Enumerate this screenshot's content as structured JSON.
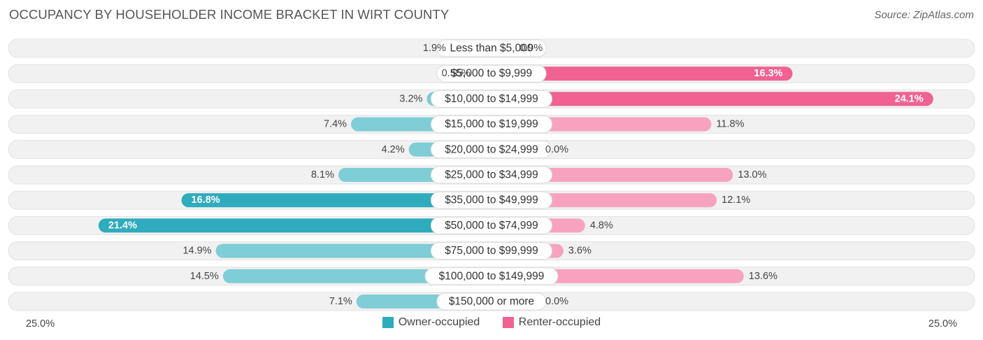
{
  "header": {
    "title": "OCCUPANCY BY HOUSEHOLDER INCOME BRACKET IN WIRT COUNTY",
    "source": "Source: ZipAtlas.com"
  },
  "colors": {
    "owner_dark": "#2eabbd",
    "owner_light": "#7fcdd6",
    "renter_dark": "#f06292",
    "renter_light": "#f7a3c0",
    "row_bg": "#f1f1f1"
  },
  "chart_data": {
    "type": "bar",
    "orientation": "horizontal-diverging",
    "title": "OCCUPANCY BY HOUSEHOLDER INCOME BRACKET IN WIRT COUNTY",
    "categories": [
      "Less than $5,000",
      "$5,000 to $9,999",
      "$10,000 to $14,999",
      "$15,000 to $19,999",
      "$20,000 to $24,999",
      "$25,000 to $34,999",
      "$35,000 to $49,999",
      "$50,000 to $74,999",
      "$75,000 to $99,999",
      "$100,000 to $149,999",
      "$150,000 or more"
    ],
    "series": [
      {
        "name": "Owner-occupied",
        "values": [
          1.9,
          0.55,
          3.2,
          7.4,
          4.2,
          8.1,
          16.8,
          21.4,
          14.9,
          14.5,
          7.1
        ],
        "labels": [
          "1.9%",
          "0.55%",
          "3.2%",
          "7.4%",
          "4.2%",
          "8.1%",
          "16.8%",
          "21.4%",
          "14.9%",
          "14.5%",
          "7.1%"
        ]
      },
      {
        "name": "Renter-occupied",
        "values": [
          0.9,
          16.3,
          24.1,
          11.8,
          0.0,
          13.0,
          12.1,
          4.8,
          3.6,
          13.6,
          0.0
        ],
        "labels": [
          "0.9%",
          "16.3%",
          "24.1%",
          "11.8%",
          "0.0%",
          "13.0%",
          "12.1%",
          "4.8%",
          "3.6%",
          "13.6%",
          "0.0%"
        ]
      }
    ],
    "xlim": [
      -25,
      25
    ],
    "axis_labels": {
      "left": "25.0%",
      "right": "25.0%"
    },
    "legend": "bottom-center"
  }
}
